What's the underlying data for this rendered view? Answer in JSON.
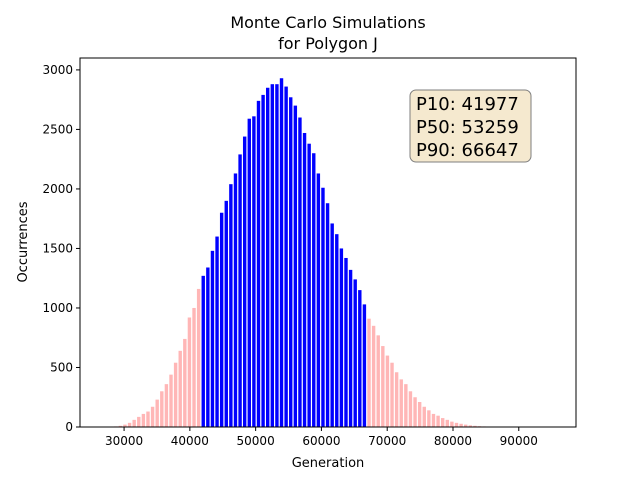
{
  "chart_data": {
    "type": "bar",
    "title": [
      "Monte Carlo Simulations",
      "for Polygon J"
    ],
    "xlabel": "Generation",
    "ylabel": "Occurrences",
    "xlim": [
      23300,
      98700
    ],
    "ylim": [
      0,
      3100
    ],
    "xticks": [
      30000,
      40000,
      50000,
      60000,
      70000,
      80000,
      90000
    ],
    "xtick_labels": [
      "30000",
      "40000",
      "50000",
      "60000",
      "70000",
      "80000",
      "90000"
    ],
    "yticks": [
      0,
      500,
      1000,
      1500,
      2000,
      2500,
      3000
    ],
    "ytick_labels": [
      "0",
      "500",
      "1000",
      "1500",
      "2000",
      "2500",
      "3000"
    ],
    "grid": false,
    "bin_start": 27000,
    "bin_width": 700,
    "values": [
      1,
      3,
      5,
      10,
      20,
      35,
      60,
      85,
      110,
      130,
      170,
      230,
      300,
      360,
      440,
      540,
      640,
      740,
      920,
      1000,
      1160,
      1270,
      1340,
      1480,
      1600,
      1800,
      1900,
      2040,
      2130,
      2290,
      2440,
      2590,
      2610,
      2740,
      2790,
      2850,
      2880,
      2880,
      2930,
      2860,
      2770,
      2700,
      2600,
      2470,
      2380,
      2300,
      2130,
      2010,
      1880,
      1710,
      1620,
      1500,
      1420,
      1320,
      1240,
      1150,
      1030,
      910,
      850,
      770,
      680,
      600,
      540,
      460,
      400,
      360,
      300,
      250,
      210,
      170,
      140,
      110,
      95,
      75,
      60,
      45,
      35,
      27,
      20,
      14,
      10,
      7,
      5,
      3,
      2,
      1,
      1
    ],
    "highlight_range": [
      42000,
      66700
    ],
    "colors": {
      "inner": "#0000ff",
      "outer": "#ffb6b6"
    },
    "annotation": {
      "lines": [
        "P10: 41977",
        "P50: 53259",
        "P90: 66647"
      ],
      "placement": "top-right",
      "facecolor": "#f5e9cf",
      "edgecolor": "#7f7f7f"
    }
  }
}
